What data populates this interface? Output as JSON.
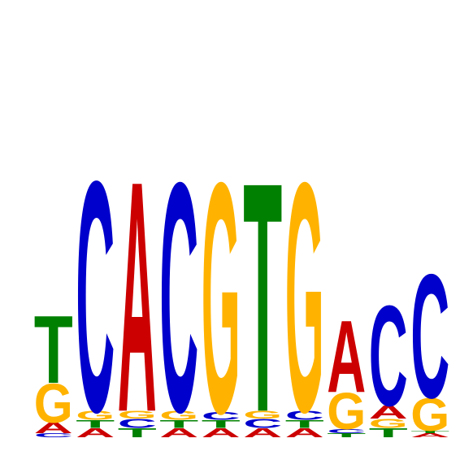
{
  "sequence_logo": {
    "colors": {
      "A": "#cc0000",
      "C": "#0000cc",
      "G": "#ffb300",
      "T": "#008000"
    },
    "max_bits": 2,
    "positions": [
      {
        "letters": [
          {
            "base": "C",
            "bits": 0.03
          },
          {
            "base": "A",
            "bits": 0.08
          },
          {
            "base": "G",
            "bits": 0.3
          },
          {
            "base": "T",
            "bits": 0.52
          }
        ]
      },
      {
        "letters": [
          {
            "base": "A",
            "bits": 0.07
          },
          {
            "base": "T",
            "bits": 0.06
          },
          {
            "base": "G",
            "bits": 0.07
          },
          {
            "base": "C",
            "bits": 1.77
          }
        ]
      },
      {
        "letters": [
          {
            "base": "T",
            "bits": 0.07
          },
          {
            "base": "C",
            "bits": 0.07
          },
          {
            "base": "G",
            "bits": 0.06
          },
          {
            "base": "A",
            "bits": 1.77
          }
        ]
      },
      {
        "letters": [
          {
            "base": "A",
            "bits": 0.07
          },
          {
            "base": "T",
            "bits": 0.06
          },
          {
            "base": "G",
            "bits": 0.07
          },
          {
            "base": "C",
            "bits": 1.76
          }
        ]
      },
      {
        "letters": [
          {
            "base": "A",
            "bits": 0.07
          },
          {
            "base": "T",
            "bits": 0.06
          },
          {
            "base": "C",
            "bits": 0.06
          },
          {
            "base": "G",
            "bits": 1.77
          }
        ]
      },
      {
        "letters": [
          {
            "base": "A",
            "bits": 0.07
          },
          {
            "base": "C",
            "bits": 0.07
          },
          {
            "base": "G",
            "bits": 0.06
          },
          {
            "base": "T",
            "bits": 1.76
          }
        ]
      },
      {
        "letters": [
          {
            "base": "A",
            "bits": 0.07
          },
          {
            "base": "T",
            "bits": 0.06
          },
          {
            "base": "C",
            "bits": 0.07
          },
          {
            "base": "G",
            "bits": 1.76
          }
        ]
      },
      {
        "letters": [
          {
            "base": "T",
            "bits": 0.03
          },
          {
            "base": "C",
            "bits": 0.03
          },
          {
            "base": "G",
            "bits": 0.28
          },
          {
            "base": "A",
            "bits": 0.55
          }
        ]
      },
      {
        "letters": [
          {
            "base": "T",
            "bits": 0.07
          },
          {
            "base": "G",
            "bits": 0.07
          },
          {
            "base": "A",
            "bits": 0.1
          },
          {
            "base": "C",
            "bits": 0.77
          }
        ]
      },
      {
        "letters": [
          {
            "base": "A",
            "bits": 0.03
          },
          {
            "base": "T",
            "bits": 0.02
          },
          {
            "base": "G",
            "bits": 0.25
          },
          {
            "base": "C",
            "bits": 0.95
          }
        ]
      }
    ]
  }
}
